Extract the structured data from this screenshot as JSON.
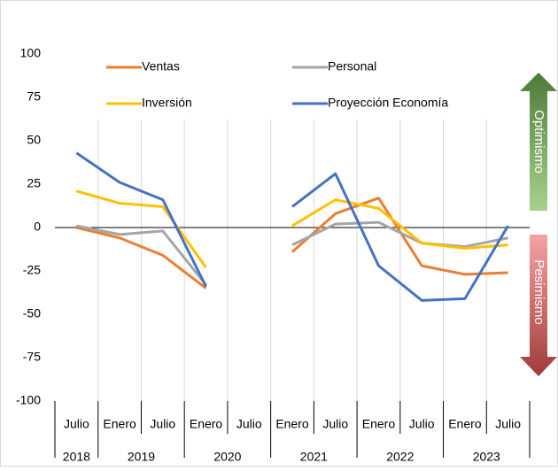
{
  "chart_data": {
    "type": "line",
    "groups": [
      {
        "name": "2018",
        "categories": [
          "Julio"
        ]
      },
      {
        "name": "2019",
        "categories": [
          "Enero",
          "Julio"
        ]
      },
      {
        "name": "2020",
        "categories": [
          "Enero",
          "Julio"
        ]
      },
      {
        "name": "2021",
        "categories": [
          "Enero",
          "Julio"
        ]
      },
      {
        "name": "2022",
        "categories": [
          "Enero",
          "Julio"
        ]
      },
      {
        "name": "2023",
        "categories": [
          "Enero",
          "Julio"
        ]
      }
    ],
    "series": [
      {
        "name": "Ventas",
        "color": "#ed7d31",
        "values": [
          0,
          -6,
          -16,
          -35,
          null,
          -14,
          8,
          17,
          -22,
          -27,
          -26
        ]
      },
      {
        "name": "Personal",
        "color": "#a5a5a5",
        "values": [
          1,
          -4,
          -2,
          -33,
          null,
          -10,
          2,
          3,
          -9,
          -11,
          -6
        ]
      },
      {
        "name": "Inversión",
        "color": "#ffc000",
        "values": [
          21,
          14,
          12,
          -23,
          null,
          1,
          16,
          11,
          -9,
          -12,
          -10
        ]
      },
      {
        "name": "Proyección Economía",
        "color": "#4472c4",
        "values": [
          43,
          26,
          16,
          -34,
          null,
          12,
          31,
          -22,
          -42,
          -41,
          1
        ]
      }
    ],
    "ylim": [
      -100,
      100
    ],
    "yticks": [
      -100,
      -75,
      -50,
      -25,
      0,
      25,
      50,
      75,
      100
    ],
    "annotations": [
      "Optimismo",
      "Pesimismo"
    ]
  }
}
